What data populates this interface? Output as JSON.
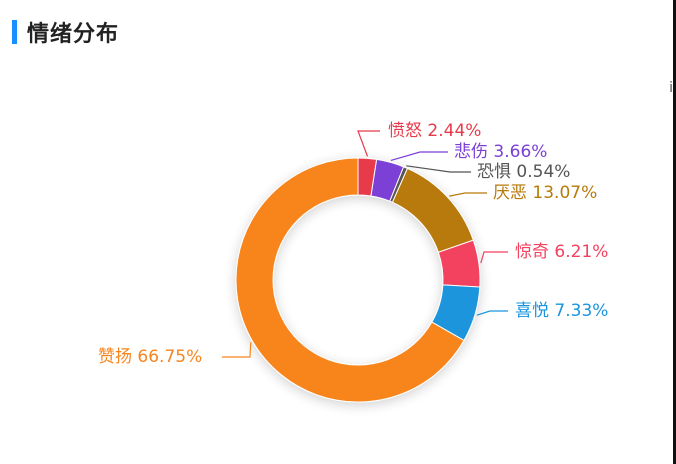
{
  "header": {
    "title": "情绪分布"
  },
  "edge_glyph": "i",
  "chart_data": {
    "type": "pie",
    "variant": "donut",
    "title": "情绪分布",
    "slices": [
      {
        "name": "愤怒",
        "value": 2.44,
        "label": "愤怒 2.44%",
        "color": "#e83a4a"
      },
      {
        "name": "悲伤",
        "value": 3.66,
        "label": "悲伤 3.66%",
        "color": "#7b3fd6"
      },
      {
        "name": "恐惧",
        "value": 0.54,
        "label": "恐惧 0.54%",
        "color": "#555555"
      },
      {
        "name": "厌恶",
        "value": 13.07,
        "label": "厌恶 13.07%",
        "color": "#b87a0a"
      },
      {
        "name": "惊奇",
        "value": 6.21,
        "label": "惊奇 6.21%",
        "color": "#f2425f"
      },
      {
        "name": "喜悦",
        "value": 7.33,
        "label": "喜悦 7.33%",
        "color": "#1a95dd"
      },
      {
        "name": "赞扬",
        "value": 66.75,
        "label": "赞扬 66.75%",
        "color": "#f7851e"
      }
    ]
  }
}
